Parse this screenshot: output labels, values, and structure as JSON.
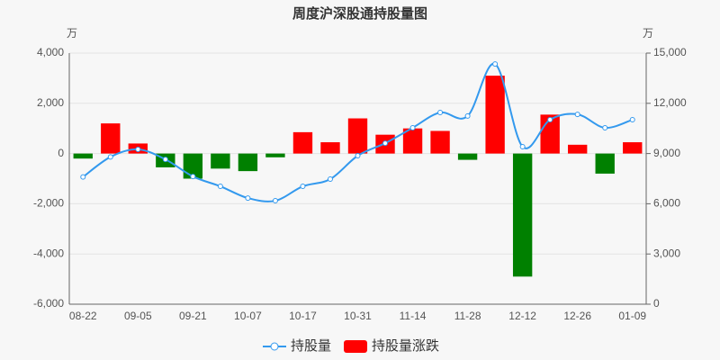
{
  "chart_data": {
    "type": "combo",
    "title": "周度沪深股通持股量图",
    "y_unit": "万",
    "y2_unit": "万",
    "categories": [
      "08-22",
      null,
      "09-05",
      null,
      "09-21",
      null,
      "10-07",
      null,
      "10-17",
      null,
      "10-31",
      null,
      "11-14",
      null,
      "11-28",
      null,
      "12-12",
      null,
      "12-26",
      null,
      "01-09"
    ],
    "series": [
      {
        "name": "持股量",
        "type": "line",
        "axis": "y2",
        "color": "#3399ee",
        "values": [
          7600,
          8800,
          9250,
          8650,
          7630,
          7040,
          6340,
          6180,
          7040,
          7470,
          8870,
          9620,
          10540,
          11450,
          11240,
          14350,
          9410,
          11020,
          11340,
          10540,
          11020
        ]
      },
      {
        "name": "持股量涨跌",
        "type": "bar",
        "color": "#ff0000",
        "negative_color": "#008000",
        "values": [
          -200,
          1200,
          400,
          -550,
          -1000,
          -600,
          -700,
          -150,
          850,
          450,
          1400,
          750,
          1000,
          900,
          -250,
          3100,
          -4900,
          1550,
          350,
          -800,
          450
        ]
      }
    ],
    "ylim": [
      -6000,
      4000
    ],
    "yticks": [
      {
        "value": -6000,
        "label": "-6,000"
      },
      {
        "value": -4000,
        "label": "-4,000"
      },
      {
        "value": -2000,
        "label": "-2,000"
      },
      0,
      {
        "value": 2000,
        "label": "2,000"
      },
      {
        "value": 4000,
        "label": "4,000"
      }
    ],
    "y2lim": [
      0,
      15000
    ],
    "y2ticks": [
      0,
      {
        "value": 3000,
        "label": "3,000"
      },
      {
        "value": 6000,
        "label": "6,000"
      },
      {
        "value": 9000,
        "label": "9,000"
      },
      {
        "value": 12000,
        "label": "12,000"
      },
      {
        "value": 15000,
        "label": "15,000"
      }
    ],
    "grid": true
  }
}
